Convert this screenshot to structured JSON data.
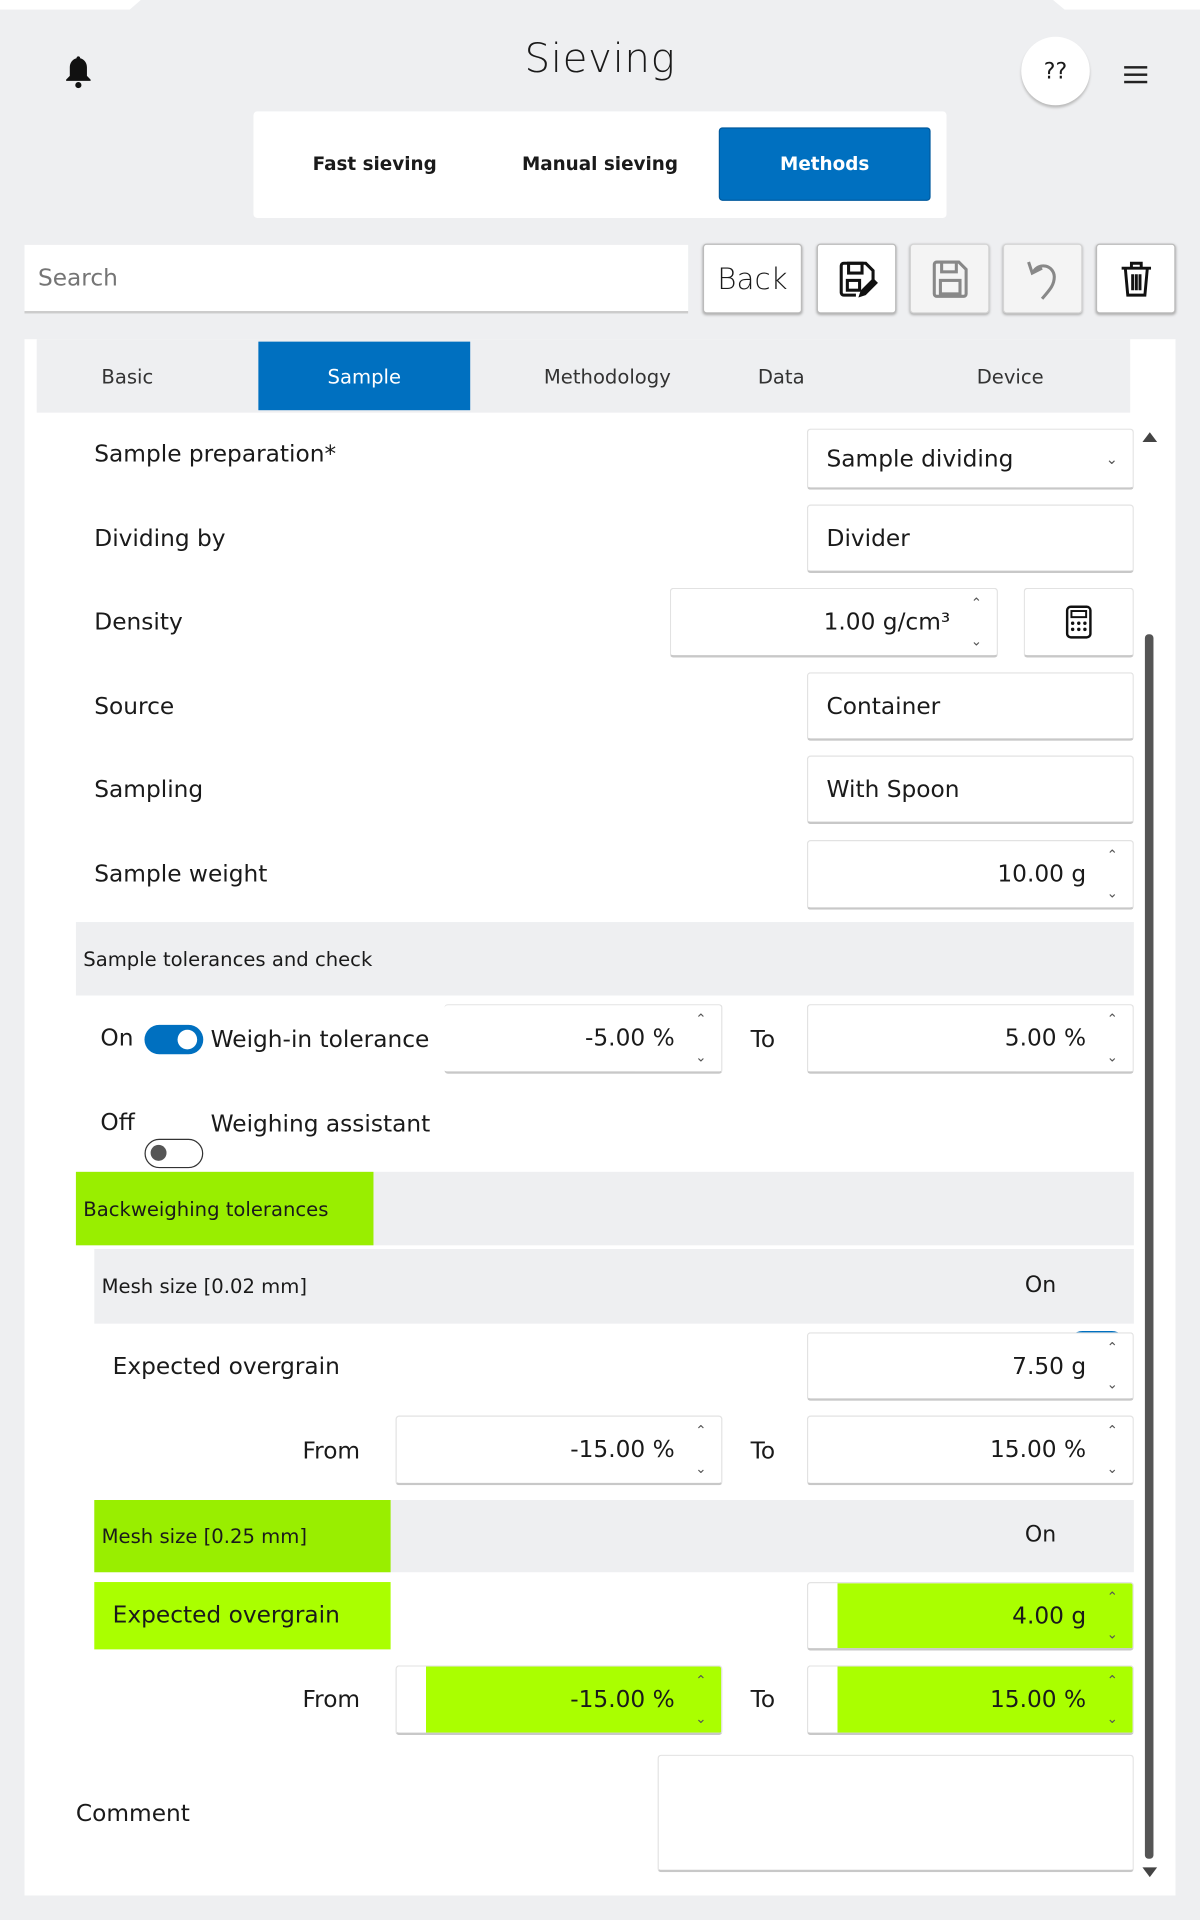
{
  "header": {
    "title": "Sieving",
    "help_label": "??"
  },
  "nav": {
    "items": [
      {
        "label": "Fast sieving"
      },
      {
        "label": "Manual sieving"
      },
      {
        "label": "Methods",
        "active": true
      }
    ]
  },
  "toolbar": {
    "search_placeholder": "Search",
    "back_label": "Back"
  },
  "tabs": [
    {
      "label": "Basic"
    },
    {
      "label": "Sample",
      "active": true
    },
    {
      "label": "Methodology"
    },
    {
      "label": "Data"
    },
    {
      "label": "Device"
    }
  ],
  "form": {
    "sample_preparation": {
      "label": "Sample preparation*",
      "value": "Sample dividing"
    },
    "dividing_by": {
      "label": "Dividing by",
      "value": "Divider"
    },
    "density": {
      "label": "Density",
      "value": "1.00 g/cm³"
    },
    "source": {
      "label": "Source",
      "value": "Container"
    },
    "sampling": {
      "label": "Sampling",
      "value": "With Spoon"
    },
    "sample_weight": {
      "label": "Sample weight",
      "value": "10.00 g"
    }
  },
  "tolerances": {
    "title": "Sample tolerances and check",
    "weigh_in": {
      "state": "On",
      "label": "Weigh-in tolerance",
      "from": "-5.00 %",
      "to_label": "To",
      "to": "5.00 %"
    },
    "assistant": {
      "state": "Off",
      "label": "Weighing assistant"
    }
  },
  "backweighing": {
    "title": "Backweighing tolerances",
    "meshes": [
      {
        "title": "Mesh size [0.02 mm]",
        "state": "On",
        "overgrain_label": "Expected overgrain",
        "overgrain": "7.50 g",
        "from_label": "From",
        "from": "-15.00 %",
        "to_label": "To",
        "to": "15.00 %"
      },
      {
        "title": "Mesh size [0.25 mm]",
        "state": "On",
        "overgrain_label": "Expected overgrain",
        "overgrain": "4.00 g",
        "from_label": "From",
        "from": "-15.00 %",
        "to_label": "To",
        "to": "15.00 %"
      }
    ]
  },
  "comment": {
    "label": "Comment",
    "value": ""
  },
  "colors": {
    "accent": "#0070c0",
    "highlight": "#aaff00",
    "background": "#eeeff1"
  }
}
